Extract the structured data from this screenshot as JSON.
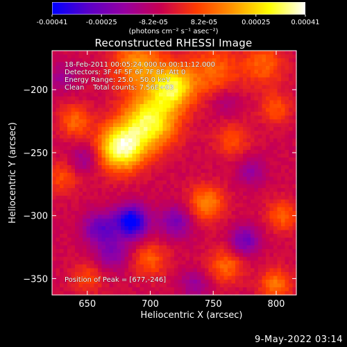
{
  "colorbar": {
    "tick_labels": [
      "-0.00041",
      "-0.00025",
      "-8.2e-05",
      "8.2e-05",
      "0.00025",
      "0.00041"
    ],
    "tick_values": [
      -0.00041,
      -0.00025,
      -8.2e-05,
      8.2e-05,
      0.00025,
      0.00041
    ],
    "range": [
      -0.00041,
      0.00041
    ],
    "units": "(photons cm⁻² s⁻¹ asec⁻²)",
    "colors": [
      "#0000ff",
      "#5a00c8",
      "#9600a0",
      "#c80050",
      "#ff3c00",
      "#ff9600",
      "#ffff00",
      "#ffffff"
    ]
  },
  "chart_data": {
    "type": "heatmap",
    "title": "Reconstructed RHESSI Image",
    "xlabel": "Heliocentric X (arcsec)",
    "ylabel": "Heliocentric Y (arcsec)",
    "xlim": [
      622,
      816
    ],
    "ylim": [
      -363,
      -169
    ],
    "x_ticks": [
      650,
      700,
      750,
      800
    ],
    "y_ticks": [
      -200,
      -250,
      -300,
      -350
    ],
    "peak": [
      677,
      -246
    ],
    "source_blobs": [
      {
        "x": 677,
        "y": -246,
        "amp": 0.00041,
        "sigma": 13
      },
      {
        "x": 700,
        "y": -225,
        "amp": 0.00036,
        "sigma": 15
      },
      {
        "x": 718,
        "y": -198,
        "amp": 0.00034,
        "sigma": 12
      },
      {
        "x": 690,
        "y": -180,
        "amp": 0.00022,
        "sigma": 14
      },
      {
        "x": 750,
        "y": -185,
        "amp": 0.00016,
        "sigma": 14
      },
      {
        "x": 790,
        "y": -180,
        "amp": 0.00015,
        "sigma": 12
      },
      {
        "x": 765,
        "y": -240,
        "amp": 0.00012,
        "sigma": 10
      },
      {
        "x": 800,
        "y": -215,
        "amp": 0.00013,
        "sigma": 9
      },
      {
        "x": 745,
        "y": -290,
        "amp": 0.0002,
        "sigma": 10
      },
      {
        "x": 805,
        "y": -300,
        "amp": 0.00015,
        "sigma": 9
      },
      {
        "x": 640,
        "y": -225,
        "amp": 0.00016,
        "sigma": 9
      },
      {
        "x": 630,
        "y": -270,
        "amp": 0.00012,
        "sigma": 9
      },
      {
        "x": 700,
        "y": -335,
        "amp": 0.00014,
        "sigma": 10
      },
      {
        "x": 760,
        "y": -340,
        "amp": 0.00016,
        "sigma": 10
      },
      {
        "x": 800,
        "y": -355,
        "amp": 0.00018,
        "sigma": 9
      },
      {
        "x": 650,
        "y": -350,
        "amp": 0.00011,
        "sigma": 9
      },
      {
        "x": 685,
        "y": -305,
        "amp": -0.0004,
        "sigma": 9
      },
      {
        "x": 660,
        "y": -310,
        "amp": -0.00022,
        "sigma": 9
      },
      {
        "x": 720,
        "y": -305,
        "amp": -0.00018,
        "sigma": 9
      },
      {
        "x": 648,
        "y": -255,
        "amp": -0.00012,
        "sigma": 8
      },
      {
        "x": 775,
        "y": -320,
        "amp": -0.0002,
        "sigma": 8
      },
      {
        "x": 670,
        "y": -330,
        "amp": -0.00016,
        "sigma": 9
      },
      {
        "x": 735,
        "y": -355,
        "amp": -0.00012,
        "sigma": 8
      },
      {
        "x": 780,
        "y": -265,
        "amp": -0.00012,
        "sigma": 8
      },
      {
        "x": 630,
        "y": -190,
        "amp": -0.0001,
        "sigma": 8
      },
      {
        "x": 760,
        "y": -210,
        "amp": -8e-05,
        "sigma": 8
      }
    ],
    "annotations": {
      "time": "18-Feb-2011 00:05:24.000 to 00:11:12.000",
      "detectors": "Detectors: 3F 4F 5F 6F 7F 8F, Att 0",
      "energy": "Energy Range: 25.0 - 50.0 keV",
      "clean": "Clean    Total counts: 7.56E+03",
      "peak": "Position of Peak = [677,-246]"
    }
  },
  "footer": {
    "date": "9-May-2022 03:14"
  }
}
